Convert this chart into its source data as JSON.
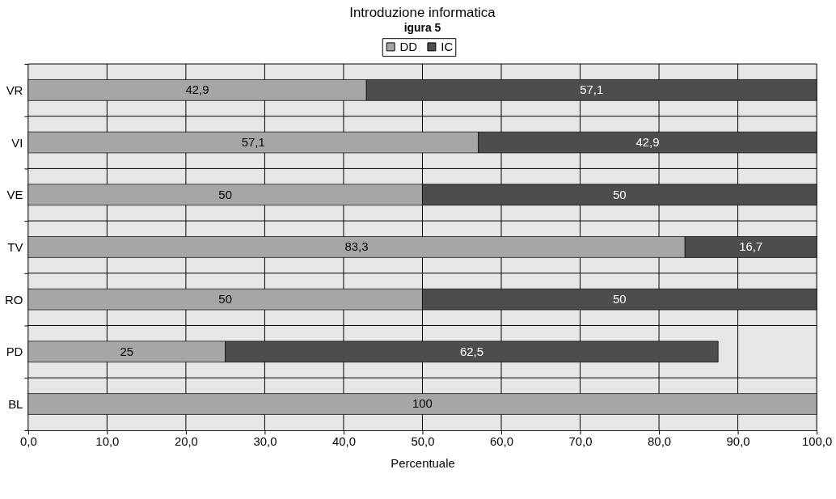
{
  "chart_data": {
    "type": "bar",
    "orientation": "horizontal",
    "stacked": true,
    "title": "Introduzione informatica",
    "xlabel": "Percentuale",
    "annotations": [
      "igura 5"
    ],
    "categories": [
      "VR",
      "VI",
      "VE",
      "TV",
      "RO",
      "PD",
      "BL"
    ],
    "series": [
      {
        "name": "DD",
        "color": "#a6a6a6",
        "values": [
          42.9,
          57.1,
          50,
          83.3,
          50,
          25,
          100
        ],
        "value_labels": [
          "42,9",
          "57,1",
          "50",
          "83,3",
          "50",
          "25",
          "100"
        ]
      },
      {
        "name": "IC",
        "color": "#4d4d4d",
        "values": [
          57.1,
          42.9,
          50,
          16.7,
          50,
          62.5,
          null
        ],
        "value_labels": [
          "57,1",
          "42,9",
          "50",
          "16,7",
          "50",
          "62,5",
          null
        ]
      }
    ],
    "xlim": [
      0,
      100
    ],
    "xticks": [
      {
        "value": 0,
        "label": "0,0"
      },
      {
        "value": 10,
        "label": "10,0"
      },
      {
        "value": 20,
        "label": "20,0"
      },
      {
        "value": 30,
        "label": "30,0"
      },
      {
        "value": 40,
        "label": "40,0"
      },
      {
        "value": 50,
        "label": "50,0"
      },
      {
        "value": 60,
        "label": "60,0"
      },
      {
        "value": 70,
        "label": "70,0"
      },
      {
        "value": 80,
        "label": "80,0"
      },
      {
        "value": 90,
        "label": "90,0"
      },
      {
        "value": 100,
        "label": "100,0"
      }
    ],
    "grid": true,
    "legend": "top"
  }
}
